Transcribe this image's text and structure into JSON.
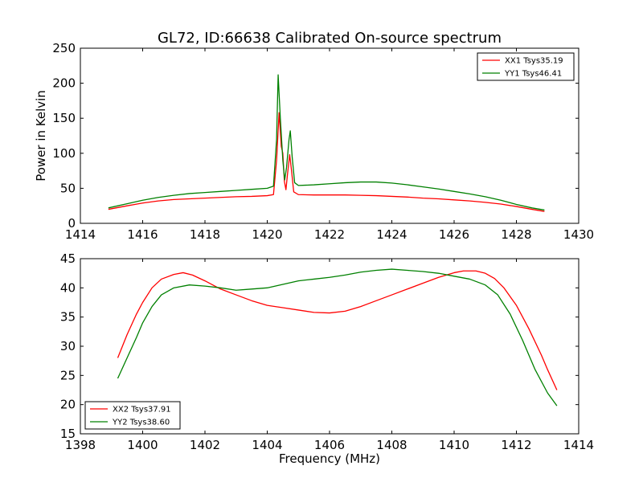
{
  "figure": {
    "title": "GL72, ID:66638 Calibrated On-source spectrum"
  },
  "chart_data": [
    {
      "type": "line",
      "title": "GL72, ID:66638 Calibrated On-source spectrum",
      "xlabel": "",
      "ylabel": "Power in Kelvin",
      "xlim": [
        1414,
        1430
      ],
      "ylim": [
        0,
        250
      ],
      "xticks": [
        1414,
        1416,
        1418,
        1420,
        1422,
        1424,
        1426,
        1428,
        1430
      ],
      "yticks": [
        0,
        50,
        100,
        150,
        200,
        250
      ],
      "legend": "top-right",
      "grid": false,
      "series": [
        {
          "name": "XX1 Tsys35.19",
          "color": "#ff0000",
          "points": [
            [
              1414.9,
              20
            ],
            [
              1415.5,
              25
            ],
            [
              1416.0,
              29
            ],
            [
              1416.5,
              32
            ],
            [
              1417.0,
              34
            ],
            [
              1417.5,
              35
            ],
            [
              1418.0,
              36
            ],
            [
              1418.5,
              37
            ],
            [
              1419.0,
              38
            ],
            [
              1419.5,
              38.5
            ],
            [
              1420.0,
              39.5
            ],
            [
              1420.2,
              41
            ],
            [
              1420.3,
              90
            ],
            [
              1420.38,
              158
            ],
            [
              1420.45,
              110
            ],
            [
              1420.5,
              100
            ],
            [
              1420.55,
              60
            ],
            [
              1420.6,
              48
            ],
            [
              1420.65,
              70
            ],
            [
              1420.72,
              98
            ],
            [
              1420.78,
              75
            ],
            [
              1420.85,
              45
            ],
            [
              1421.0,
              41
            ],
            [
              1421.5,
              40.5
            ],
            [
              1422.0,
              40.5
            ],
            [
              1422.5,
              40.5
            ],
            [
              1423.0,
              40
            ],
            [
              1423.5,
              39.5
            ],
            [
              1424.0,
              38.5
            ],
            [
              1424.5,
              37.5
            ],
            [
              1425.0,
              36
            ],
            [
              1425.5,
              35
            ],
            [
              1426.0,
              33.5
            ],
            [
              1426.5,
              32
            ],
            [
              1427.0,
              30
            ],
            [
              1427.5,
              27.5
            ],
            [
              1428.0,
              24
            ],
            [
              1428.5,
              20
            ],
            [
              1428.9,
              17
            ]
          ]
        },
        {
          "name": "YY1 Tsys46.41",
          "color": "#008000",
          "points": [
            [
              1414.9,
              22
            ],
            [
              1415.5,
              28
            ],
            [
              1416.0,
              33
            ],
            [
              1416.5,
              37
            ],
            [
              1417.0,
              40
            ],
            [
              1417.5,
              42.5
            ],
            [
              1418.0,
              44
            ],
            [
              1418.5,
              45.5
            ],
            [
              1419.0,
              47
            ],
            [
              1419.5,
              48.5
            ],
            [
              1420.0,
              50
            ],
            [
              1420.2,
              53
            ],
            [
              1420.3,
              120
            ],
            [
              1420.35,
              212
            ],
            [
              1420.42,
              150
            ],
            [
              1420.5,
              90
            ],
            [
              1420.56,
              62
            ],
            [
              1420.62,
              80
            ],
            [
              1420.7,
              120
            ],
            [
              1420.74,
              132
            ],
            [
              1420.8,
              95
            ],
            [
              1420.88,
              58
            ],
            [
              1421.0,
              54
            ],
            [
              1421.5,
              55
            ],
            [
              1422.0,
              56.5
            ],
            [
              1422.5,
              58
            ],
            [
              1423.0,
              59
            ],
            [
              1423.5,
              59
            ],
            [
              1424.0,
              57.5
            ],
            [
              1424.5,
              55
            ],
            [
              1425.0,
              52
            ],
            [
              1425.5,
              49
            ],
            [
              1426.0,
              45.5
            ],
            [
              1426.5,
              42
            ],
            [
              1427.0,
              38
            ],
            [
              1427.5,
              33
            ],
            [
              1428.0,
              27
            ],
            [
              1428.5,
              22
            ],
            [
              1428.9,
              19
            ]
          ]
        }
      ]
    },
    {
      "type": "line",
      "title": "",
      "xlabel": "Frequency (MHz)",
      "ylabel": "",
      "xlim": [
        1398,
        1414
      ],
      "ylim": [
        15,
        45
      ],
      "xticks": [
        1398,
        1400,
        1402,
        1404,
        1406,
        1408,
        1410,
        1412,
        1414
      ],
      "yticks": [
        15,
        20,
        25,
        30,
        35,
        40,
        45
      ],
      "legend": "bottom-left",
      "grid": false,
      "series": [
        {
          "name": "XX2 Tsys37.91",
          "color": "#ff0000",
          "points": [
            [
              1399.2,
              28
            ],
            [
              1399.5,
              32
            ],
            [
              1399.8,
              35.5
            ],
            [
              1400.0,
              37.5
            ],
            [
              1400.3,
              40
            ],
            [
              1400.6,
              41.5
            ],
            [
              1401.0,
              42.3
            ],
            [
              1401.3,
              42.6
            ],
            [
              1401.6,
              42.2
            ],
            [
              1402.0,
              41.2
            ],
            [
              1402.5,
              39.8
            ],
            [
              1403.0,
              38.8
            ],
            [
              1403.5,
              37.8
            ],
            [
              1404.0,
              37.0
            ],
            [
              1404.5,
              36.6
            ],
            [
              1405.0,
              36.2
            ],
            [
              1405.5,
              35.8
            ],
            [
              1406.0,
              35.7
            ],
            [
              1406.5,
              36.0
            ],
            [
              1407.0,
              36.8
            ],
            [
              1407.5,
              37.8
            ],
            [
              1408.0,
              38.8
            ],
            [
              1408.5,
              39.8
            ],
            [
              1409.0,
              40.8
            ],
            [
              1409.5,
              41.8
            ],
            [
              1410.0,
              42.6
            ],
            [
              1410.3,
              42.9
            ],
            [
              1410.7,
              42.9
            ],
            [
              1411.0,
              42.5
            ],
            [
              1411.3,
              41.6
            ],
            [
              1411.6,
              40.0
            ],
            [
              1412.0,
              37.0
            ],
            [
              1412.4,
              33.0
            ],
            [
              1412.8,
              28.5
            ],
            [
              1413.0,
              26.0
            ],
            [
              1413.3,
              22.5
            ]
          ]
        },
        {
          "name": "YY2 Tsys38.60",
          "color": "#008000",
          "points": [
            [
              1399.2,
              24.5
            ],
            [
              1399.5,
              28
            ],
            [
              1399.8,
              31.5
            ],
            [
              1400.0,
              34
            ],
            [
              1400.3,
              36.8
            ],
            [
              1400.6,
              38.8
            ],
            [
              1401.0,
              40.0
            ],
            [
              1401.5,
              40.5
            ],
            [
              1402.0,
              40.3
            ],
            [
              1402.5,
              40.0
            ],
            [
              1403.0,
              39.6
            ],
            [
              1403.5,
              39.8
            ],
            [
              1404.0,
              40.0
            ],
            [
              1404.5,
              40.6
            ],
            [
              1405.0,
              41.2
            ],
            [
              1405.5,
              41.5
            ],
            [
              1406.0,
              41.8
            ],
            [
              1406.5,
              42.2
            ],
            [
              1407.0,
              42.7
            ],
            [
              1407.5,
              43.0
            ],
            [
              1408.0,
              43.2
            ],
            [
              1408.5,
              43.0
            ],
            [
              1409.0,
              42.8
            ],
            [
              1409.5,
              42.5
            ],
            [
              1410.0,
              42.0
            ],
            [
              1410.5,
              41.5
            ],
            [
              1411.0,
              40.5
            ],
            [
              1411.4,
              38.8
            ],
            [
              1411.8,
              35.5
            ],
            [
              1412.2,
              31.0
            ],
            [
              1412.6,
              26.0
            ],
            [
              1413.0,
              22.0
            ],
            [
              1413.3,
              19.8
            ]
          ]
        }
      ]
    }
  ]
}
